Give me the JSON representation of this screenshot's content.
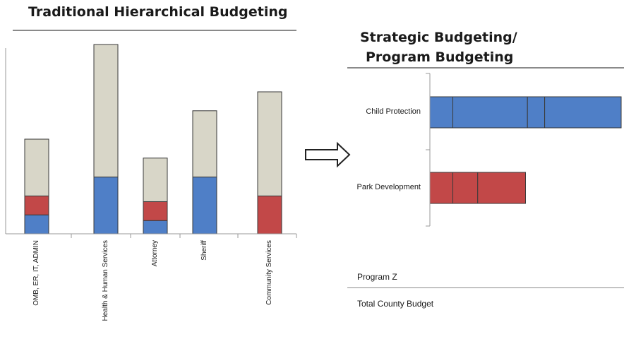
{
  "left_chart": {
    "title": "Traditional Hierarchical Budgeting"
  },
  "right_chart": {
    "title_line1": "Strategic Budgeting/",
    "title_line2": "Program Budgeting",
    "program_z_label": "Program Z",
    "total_label": "Total County Budget"
  },
  "arrow_icon": "right-arrow-icon",
  "colors": {
    "blue": "#4f7fc7",
    "red": "#c24848",
    "beige": "#d8d6c8",
    "outline": "#3a3a3a",
    "axis": "#9a9a9a"
  },
  "chart_data": [
    {
      "type": "bar",
      "stacked": true,
      "title": "Traditional Hierarchical Budgeting",
      "categories": [
        "OMB, ER, IT, ADMIN",
        "Health & Human Services",
        "Attorney",
        "Sheriff",
        "Community Services"
      ],
      "series": [
        {
          "color": "#4f7fc7",
          "values": [
            10,
            30,
            7,
            30,
            0
          ]
        },
        {
          "color": "#c24848",
          "values": [
            10,
            0,
            10,
            0,
            20
          ]
        },
        {
          "color": "#d8d6c8",
          "values": [
            30,
            70,
            23,
            35,
            55
          ]
        }
      ],
      "ylim": [
        0,
        100
      ]
    },
    {
      "type": "bar",
      "orientation": "horizontal",
      "stacked": true,
      "categories": [
        "Child Protection",
        "Park Development"
      ],
      "series": [
        {
          "color": "#4f7fc7",
          "values": [
            12,
            0
          ]
        },
        {
          "color": "#4f7fc7",
          "values": [
            39,
            0
          ]
        },
        {
          "color": "#4f7fc7",
          "values": [
            9,
            0
          ]
        },
        {
          "color": "#4f7fc7",
          "values": [
            40,
            0
          ]
        },
        {
          "color": "#c24848",
          "values": [
            0,
            12
          ]
        },
        {
          "color": "#c24848",
          "values": [
            0,
            13
          ]
        },
        {
          "color": "#c24848",
          "values": [
            0,
            25
          ]
        }
      ],
      "xlim": [
        0,
        100
      ]
    }
  ]
}
